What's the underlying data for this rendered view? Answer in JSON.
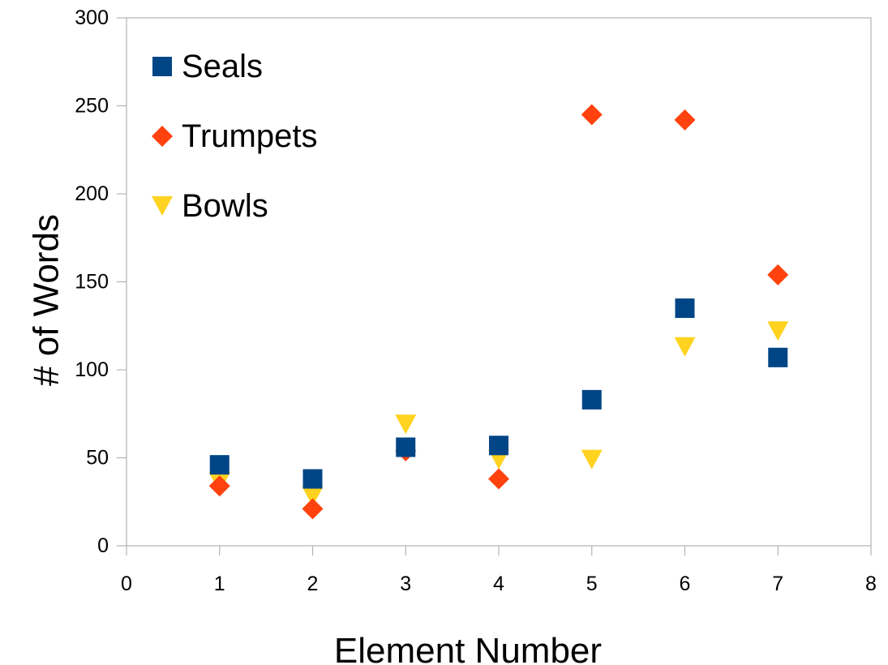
{
  "chart_data": {
    "type": "scatter",
    "title": "",
    "xlabel": "Element Number",
    "ylabel": "# of Words",
    "xlim": [
      0,
      8
    ],
    "ylim": [
      0,
      300
    ],
    "xticks": [
      0,
      1,
      2,
      3,
      4,
      5,
      6,
      7,
      8
    ],
    "yticks": [
      0,
      50,
      100,
      150,
      200,
      250,
      300
    ],
    "grid": false,
    "legend_position": "top-left",
    "x": [
      1,
      2,
      3,
      4,
      5,
      6,
      7
    ],
    "series": [
      {
        "name": "Seals",
        "marker": "square",
        "color": "#004586",
        "values": [
          46,
          38,
          56,
          57,
          83,
          135,
          107
        ]
      },
      {
        "name": "Trumpets",
        "marker": "diamond",
        "color": "#ff420e",
        "values": [
          34,
          21,
          54,
          38,
          245,
          242,
          154
        ]
      },
      {
        "name": "Bowls",
        "marker": "triangle-down",
        "color": "#ffd320",
        "values": [
          36,
          28,
          69,
          49,
          49,
          113,
          122
        ]
      }
    ]
  }
}
